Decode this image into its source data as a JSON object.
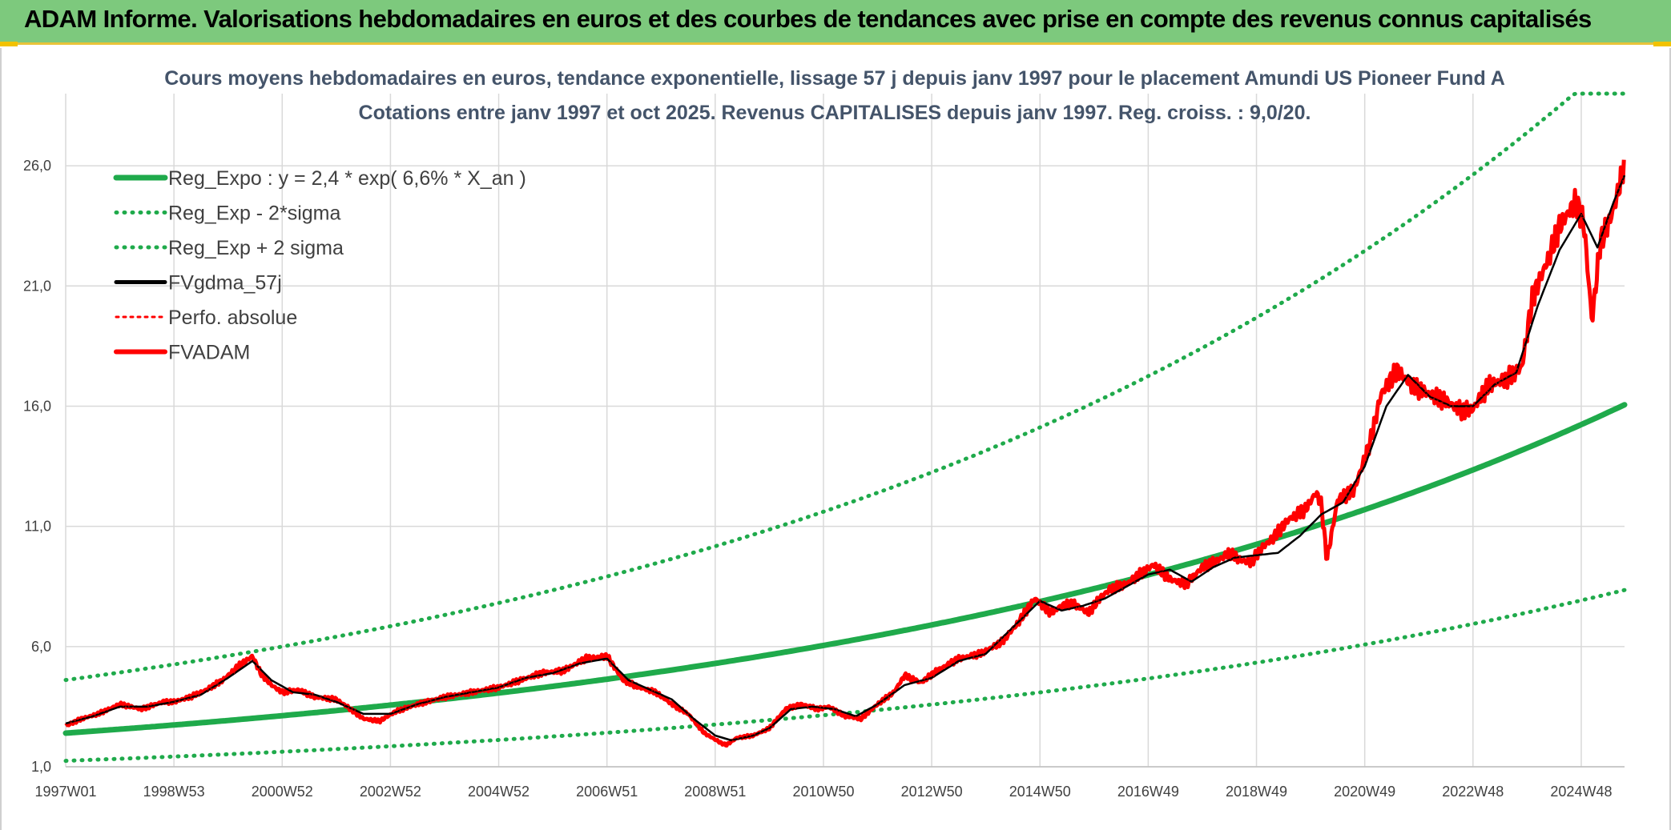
{
  "header": {
    "title": "ADAM Informe. Valorisations hebdomadaires en euros et des courbes de tendances avec prise en compte des revenus connus capitalisés"
  },
  "colors": {
    "banner_bg": "#7dc97d",
    "reg_green": "#1faa4b",
    "band_green": "#1faa4b",
    "smooth_black": "#000000",
    "price_red": "#ff0000",
    "grid": "#d9d9d9",
    "title_blue": "#44546a"
  },
  "chart_data": {
    "type": "line",
    "title": "Cours moyens hebdomadaires en euros, tendance exponentielle, lissage 57 j depuis janv 1997 pour le placement Amundi US Pioneer Fund A",
    "subtitle": "Cotations entre janv 1997 et oct 2025. Revenus CAPITALISES depuis janv 1997. Reg. croiss. : 9,0/20.",
    "xlabel": "",
    "ylabel": "",
    "x_range": [
      1997.0,
      2025.8
    ],
    "ylim": [
      1.0,
      29.0
    ],
    "y_ticks": [
      1.0,
      6.0,
      11.0,
      16.0,
      21.0,
      26.0
    ],
    "y_tick_labels": [
      "1,0",
      "6,0",
      "11,0",
      "16,0",
      "21,0",
      "26,0"
    ],
    "x_tick_positions": [
      1997.0,
      1999.0,
      2001.0,
      2003.0,
      2005.0,
      2007.0,
      2009.0,
      2011.0,
      2013.0,
      2015.0,
      2017.0,
      2019.0,
      2021.0,
      2023.0,
      2025.0
    ],
    "x_tick_labels": [
      "1997W01",
      "1998W53",
      "2000W52",
      "2002W52",
      "2004W52",
      "2006W51",
      "2008W51",
      "2010W50",
      "2012W50",
      "2014W50",
      "2016W49",
      "2018W49",
      "2020W49",
      "2022W48",
      "2024W48"
    ],
    "grid": true,
    "legend_position": "top-left",
    "regression": {
      "a": 2.4,
      "rate": 0.066,
      "x0": 1997.0
    },
    "sigma_bands": {
      "lower_factor": 0.52,
      "upper_factor": 1.92
    },
    "series": [
      {
        "name": "Reg_Expo : y = 2,4 * exp( 6,6% *  X_an )",
        "style": "thick-solid-green"
      },
      {
        "name": "Reg_Exp - 2*sigma",
        "style": "dotted-green"
      },
      {
        "name": "Reg_Exp + 2 sigma",
        "style": "dotted-green"
      },
      {
        "name": "FVgdma_57j",
        "style": "solid-black"
      },
      {
        "name": "Perfo. absolue",
        "style": "dotted-red"
      },
      {
        "name": "FVADAM",
        "style": "thick-solid-red",
        "x": [
          1997.0,
          1997.3,
          1997.6,
          1998.0,
          1998.4,
          1998.8,
          1999.0,
          1999.3,
          1999.6,
          1999.9,
          2000.2,
          2000.45,
          2000.6,
          2000.8,
          2001.0,
          2001.3,
          2001.6,
          2002.0,
          2002.2,
          2002.5,
          2002.8,
          2003.1,
          2003.5,
          2004.0,
          2004.5,
          2005.0,
          2005.4,
          2005.8,
          2006.2,
          2006.6,
          2007.0,
          2007.3,
          2007.6,
          2007.9,
          2008.2,
          2008.5,
          2008.8,
          2009.1,
          2009.2,
          2009.4,
          2009.7,
          2010.0,
          2010.3,
          2010.6,
          2010.9,
          2011.1,
          2011.4,
          2011.7,
          2012.0,
          2012.3,
          2012.5,
          2012.8,
          2013.1,
          2013.5,
          2013.9,
          2014.3,
          2014.6,
          2014.9,
          2015.2,
          2015.4,
          2015.6,
          2015.9,
          2016.1,
          2016.3,
          2016.6,
          2016.9,
          2017.1,
          2017.4,
          2017.7,
          2018.0,
          2018.3,
          2018.5,
          2018.7,
          2018.9,
          2019.1,
          2019.3,
          2019.6,
          2019.9,
          2020.1,
          2020.2,
          2020.3,
          2020.5,
          2020.8,
          2021.1,
          2021.3,
          2021.6,
          2021.9,
          2022.2,
          2022.5,
          2022.8,
          2023.0,
          2023.3,
          2023.6,
          2023.9,
          2024.1,
          2024.4,
          2024.6,
          2024.9,
          2025.05,
          2025.2,
          2025.35,
          2025.5,
          2025.6,
          2025.7,
          2025.8
        ],
        "values": [
          2.7,
          3.0,
          3.2,
          3.6,
          3.4,
          3.7,
          3.7,
          3.9,
          4.2,
          4.6,
          5.2,
          5.6,
          4.9,
          4.4,
          4.1,
          4.2,
          3.9,
          3.8,
          3.5,
          3.0,
          2.9,
          3.3,
          3.6,
          3.9,
          4.1,
          4.3,
          4.6,
          4.9,
          5.0,
          5.5,
          5.6,
          4.6,
          4.3,
          4.1,
          3.6,
          3.2,
          2.4,
          2.0,
          1.9,
          2.2,
          2.3,
          2.6,
          3.4,
          3.6,
          3.4,
          3.5,
          3.1,
          3.0,
          3.6,
          4.1,
          4.8,
          4.5,
          5.0,
          5.5,
          5.7,
          6.2,
          7.0,
          8.0,
          7.4,
          7.7,
          7.8,
          7.4,
          8.0,
          8.4,
          8.6,
          9.1,
          9.4,
          8.8,
          8.6,
          9.3,
          9.6,
          9.9,
          9.6,
          9.5,
          10.1,
          10.5,
          11.3,
          11.7,
          12.4,
          11.9,
          9.6,
          12.1,
          12.5,
          14.5,
          16.5,
          17.5,
          16.8,
          16.5,
          16.2,
          15.8,
          15.9,
          16.9,
          17.1,
          17.6,
          20.5,
          22.2,
          23.5,
          24.5,
          23.6,
          19.5,
          22.8,
          23.6,
          24.2,
          25.1,
          26.3
        ]
      }
    ],
    "smoothed_FVgdma_57j": {
      "x": [
        1997.0,
        1997.5,
        1998.0,
        1998.5,
        1999.0,
        1999.5,
        2000.0,
        2000.45,
        2000.8,
        2001.2,
        2001.6,
        2002.0,
        2002.5,
        2003.0,
        2003.5,
        2004.0,
        2004.5,
        2005.0,
        2005.5,
        2006.0,
        2006.5,
        2007.0,
        2007.4,
        2007.8,
        2008.2,
        2008.6,
        2009.0,
        2009.3,
        2009.7,
        2010.0,
        2010.4,
        2010.8,
        2011.2,
        2011.6,
        2012.0,
        2012.5,
        2013.0,
        2013.5,
        2014.0,
        2014.5,
        2015.0,
        2015.4,
        2015.8,
        2016.2,
        2016.6,
        2017.0,
        2017.4,
        2017.8,
        2018.2,
        2018.6,
        2019.0,
        2019.4,
        2019.8,
        2020.2,
        2020.6,
        2021.0,
        2021.4,
        2021.8,
        2022.2,
        2022.6,
        2023.0,
        2023.4,
        2023.8,
        2024.2,
        2024.6,
        2025.0,
        2025.3,
        2025.6,
        2025.8
      ],
      "values": [
        2.8,
        3.1,
        3.5,
        3.5,
        3.7,
        4.0,
        4.7,
        5.4,
        4.6,
        4.1,
        4.0,
        3.7,
        3.2,
        3.2,
        3.6,
        3.9,
        4.1,
        4.3,
        4.7,
        4.9,
        5.3,
        5.5,
        4.6,
        4.2,
        3.8,
        3.0,
        2.3,
        2.1,
        2.3,
        2.6,
        3.4,
        3.5,
        3.4,
        3.1,
        3.6,
        4.4,
        4.7,
        5.4,
        5.7,
        6.8,
        7.9,
        7.5,
        7.7,
        8.0,
        8.5,
        9.0,
        9.2,
        8.7,
        9.3,
        9.7,
        9.8,
        9.9,
        10.6,
        11.5,
        12.0,
        13.5,
        16.0,
        17.3,
        16.4,
        16.0,
        16.0,
        16.9,
        17.4,
        20.2,
        22.5,
        24.0,
        22.6,
        24.5,
        25.6
      ]
    }
  }
}
